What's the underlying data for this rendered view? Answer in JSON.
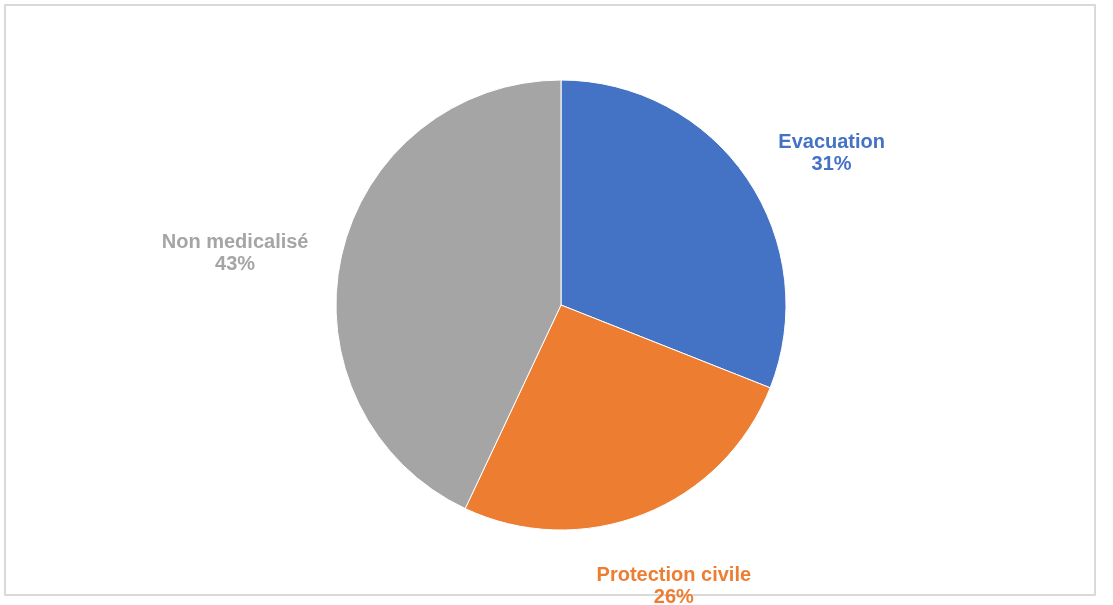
{
  "chart_data": {
    "type": "pie",
    "categories": [
      "Evacuation",
      "Protection civile",
      "Non medicalisé"
    ],
    "values": [
      31,
      26,
      43
    ],
    "colors": [
      "#4472c4",
      "#ed7d31",
      "#a5a5a5"
    ],
    "value_labels": [
      "31%",
      "26%",
      "43%"
    ],
    "legend": false
  }
}
